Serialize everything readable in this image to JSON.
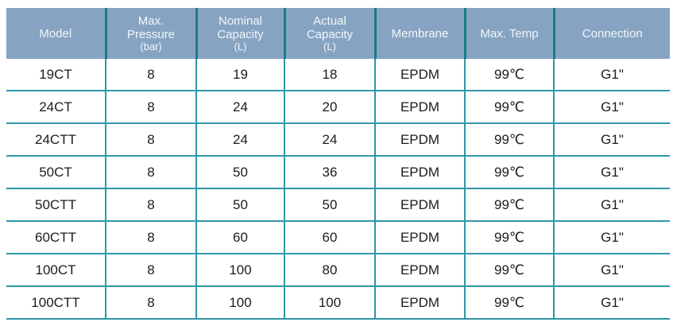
{
  "colors": {
    "header_background": "#86a4c2",
    "header_text": "#f2f6fa",
    "header_separator": "#1a7a8c",
    "grid_line": "#3096a9",
    "body_text": "#1c1c1c",
    "page_background": "#ffffff"
  },
  "table": {
    "columns": [
      {
        "id": "model",
        "label": "Model",
        "label_lines": [
          "Model"
        ]
      },
      {
        "id": "max-pressure",
        "label": "Max. Pressure (bar)",
        "label_lines": [
          "Max.",
          "Pressure",
          "(bar)"
        ]
      },
      {
        "id": "nominal-capacity",
        "label": "Nominal Capacity (L)",
        "label_lines": [
          "Nominal",
          "Capacity",
          "(L)"
        ]
      },
      {
        "id": "actual-capacity",
        "label": "Actual Capacity (L)",
        "label_lines": [
          "Actual",
          "Capacity",
          "(L)"
        ]
      },
      {
        "id": "membrane",
        "label": "Membrane",
        "label_lines": [
          "Membrane"
        ]
      },
      {
        "id": "max-temp",
        "label": "Max. Temp",
        "label_lines": [
          "Max. Temp"
        ]
      },
      {
        "id": "connection",
        "label": "Connection",
        "label_lines": [
          "Connection"
        ]
      }
    ],
    "rows": [
      [
        "19CT",
        "8",
        "19",
        "18",
        "EPDM",
        "99℃",
        "G1\""
      ],
      [
        "24CT",
        "8",
        "24",
        "20",
        "EPDM",
        "99℃",
        "G1\""
      ],
      [
        "24CTT",
        "8",
        "24",
        "24",
        "EPDM",
        "99℃",
        "G1\""
      ],
      [
        "50CT",
        "8",
        "50",
        "36",
        "EPDM",
        "99℃",
        "G1\""
      ],
      [
        "50CTT",
        "8",
        "50",
        "50",
        "EPDM",
        "99℃",
        "G1\""
      ],
      [
        "60CTT",
        "8",
        "60",
        "60",
        "EPDM",
        "99℃",
        "G1\""
      ],
      [
        "100CT",
        "8",
        "100",
        "80",
        "EPDM",
        "99℃",
        "G1\""
      ],
      [
        "100CTT",
        "8",
        "100",
        "100",
        "EPDM",
        "99℃",
        "G1\""
      ]
    ]
  }
}
